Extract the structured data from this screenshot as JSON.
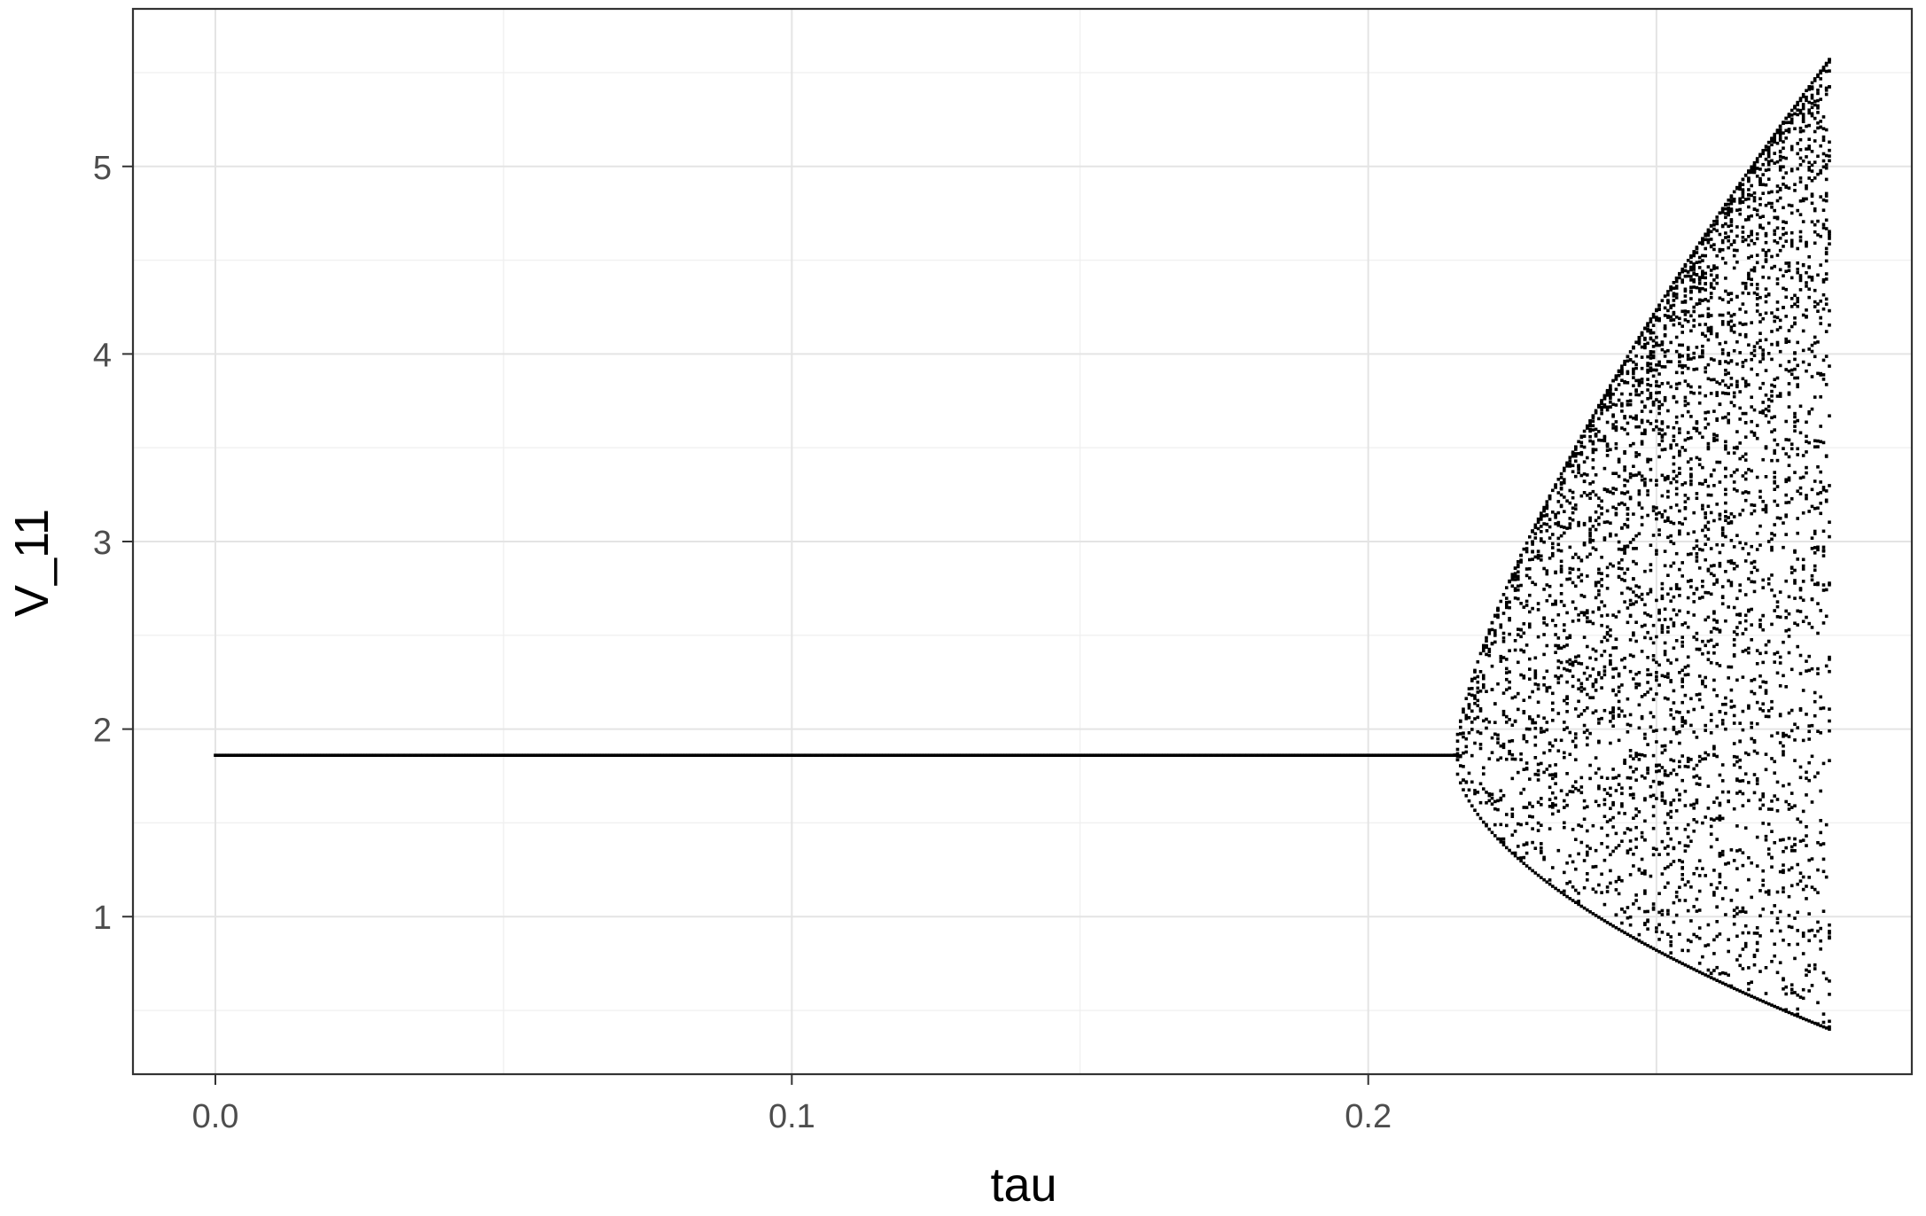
{
  "chart_data": {
    "type": "scatter",
    "title": "",
    "xlabel": "tau",
    "ylabel": "V_11",
    "xlim": [
      -0.0143,
      0.2943
    ],
    "ylim": [
      0.16,
      5.84
    ],
    "x_ticks": [
      0.0,
      0.1,
      0.2
    ],
    "x_tick_labels": [
      "0.0",
      "0.1",
      "0.2"
    ],
    "y_ticks": [
      1,
      2,
      3,
      4,
      5
    ],
    "y_tick_labels": [
      "1",
      "2",
      "3",
      "4",
      "5"
    ],
    "grid": true,
    "legend": "none",
    "point_color": "#000000",
    "description_of_series": {
      "tau_step": 0.0005,
      "tau_range": [
        0.0,
        0.28
      ],
      "steady_state_value": 1.86,
      "oscillation_onset_tau": 0.215,
      "upper_envelope_at_tau_end": 5.57,
      "lower_envelope_at_tau_end": 0.4
    }
  }
}
